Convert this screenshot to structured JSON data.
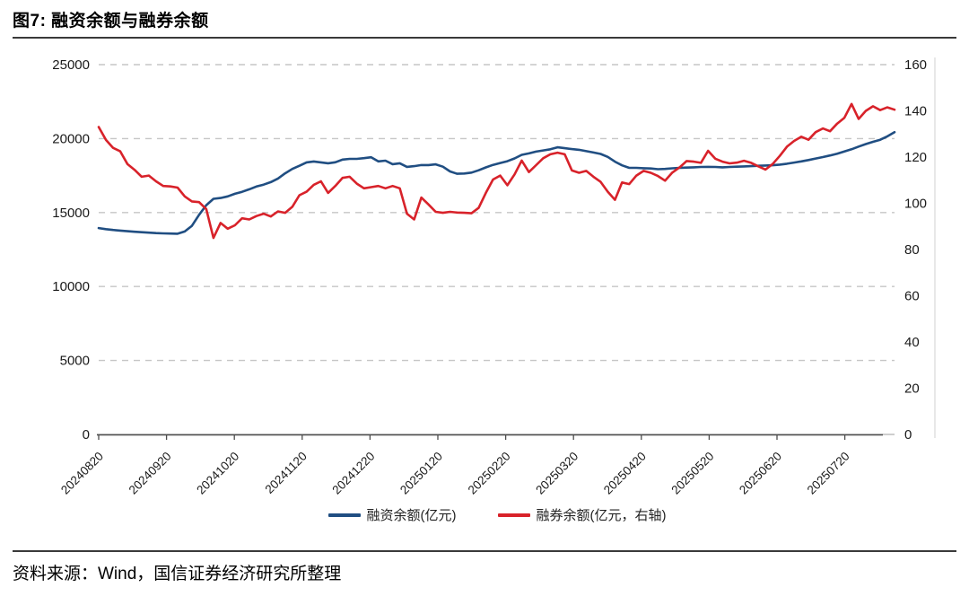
{
  "title": "图7: 融资余额与融券余额",
  "source": "资料来源：Wind，国信证券经济研究所整理",
  "colors": {
    "financing_line": "#204e82",
    "securities_lending_line": "#d8222a",
    "gridline": "#c6c6c6",
    "axis": "#4d4d4d",
    "baseline": "#b0b0b0",
    "right_border": "#d9d9d9",
    "label_text": "#1a1a1a"
  },
  "legend": [
    {
      "label": "融资余额(亿元)",
      "color": "#204e82"
    },
    {
      "label": "融券余额(亿元，右轴)",
      "color": "#d8222a"
    }
  ],
  "chart_data": {
    "type": "line",
    "title": "图7: 融资余额与融券余额",
    "x_domain": [
      "20240820",
      "~20250812"
    ],
    "x_tick_labels": [
      "20240820",
      "20240920",
      "20241020",
      "20241120",
      "20241220",
      "20250120",
      "20250220",
      "20250320",
      "20250420",
      "20250520",
      "20250620",
      "20250720"
    ],
    "left_axis": {
      "min": 0,
      "max": 25000,
      "step": 5000,
      "ticks": [
        0,
        5000,
        10000,
        15000,
        20000,
        25000
      ]
    },
    "right_axis": {
      "min": 0,
      "max": 160,
      "step": 20,
      "ticks": [
        0,
        20,
        40,
        60,
        80,
        100,
        120,
        140,
        160
      ]
    },
    "grid": "horizontal dashed at left-axis steps",
    "legend_position": "bottom center",
    "sampling_note": "values sampled at 112 evenly spaced points across the date range, read from plot",
    "series": [
      {
        "name": "融资余额(亿元)",
        "axis": "left",
        "color": "#204e82",
        "values": [
          13950,
          13880,
          13820,
          13780,
          13740,
          13700,
          13670,
          13640,
          13610,
          13590,
          13580,
          13570,
          13720,
          14100,
          14850,
          15500,
          15930,
          15980,
          16090,
          16270,
          16400,
          16570,
          16760,
          16890,
          17060,
          17300,
          17650,
          17950,
          18160,
          18390,
          18450,
          18390,
          18330,
          18400,
          18580,
          18630,
          18630,
          18680,
          18740,
          18460,
          18510,
          18270,
          18330,
          18090,
          18140,
          18210,
          18210,
          18260,
          18100,
          17780,
          17620,
          17640,
          17700,
          17860,
          18050,
          18220,
          18350,
          18470,
          18660,
          18900,
          19000,
          19120,
          19200,
          19280,
          19410,
          19350,
          19290,
          19240,
          19150,
          19060,
          18960,
          18760,
          18440,
          18190,
          18020,
          18020,
          18000,
          17980,
          17930,
          17950,
          17990,
          18020,
          18040,
          18060,
          18080,
          18090,
          18080,
          18060,
          18080,
          18100,
          18120,
          18140,
          18160,
          18180,
          18200,
          18240,
          18300,
          18380,
          18460,
          18550,
          18650,
          18750,
          18860,
          18980,
          19130,
          19280,
          19460,
          19630,
          19780,
          19920,
          20150,
          20430
        ]
      },
      {
        "name": "融券余额(亿元，右轴)",
        "axis": "right",
        "color": "#d8222a",
        "values": [
          133.0,
          127.5,
          124.0,
          122.5,
          117.0,
          114.5,
          111.5,
          112.0,
          109.5,
          107.5,
          107.3,
          106.8,
          103.0,
          100.8,
          100.5,
          97.5,
          85.0,
          91.5,
          89.0,
          90.5,
          93.5,
          93.0,
          94.5,
          95.5,
          94.3,
          96.5,
          95.9,
          98.5,
          103.5,
          105.0,
          108.0,
          109.5,
          104.5,
          107.5,
          111.0,
          111.5,
          108.5,
          106.5,
          107.0,
          107.5,
          106.5,
          107.5,
          106.5,
          95.5,
          93.0,
          102.5,
          99.5,
          96.3,
          95.9,
          96.3,
          96.0,
          95.9,
          95.7,
          98.0,
          104.5,
          110.3,
          112.0,
          107.8,
          112.5,
          118.5,
          113.5,
          116.5,
          119.5,
          121.2,
          121.9,
          121.2,
          114.2,
          113.2,
          114.0,
          111.5,
          109.3,
          105.0,
          101.5,
          109.0,
          108.3,
          112.0,
          114.0,
          113.2,
          111.8,
          109.8,
          113.3,
          115.5,
          118.3,
          118.0,
          117.5,
          122.7,
          119.3,
          118.0,
          117.3,
          117.6,
          118.4,
          117.5,
          116.0,
          114.6,
          117.0,
          120.5,
          124.5,
          127.0,
          128.8,
          127.5,
          130.8,
          132.4,
          131.2,
          134.5,
          137.0,
          143.0,
          136.5,
          140.0,
          142.0,
          140.3,
          141.5,
          140.5
        ]
      }
    ]
  }
}
